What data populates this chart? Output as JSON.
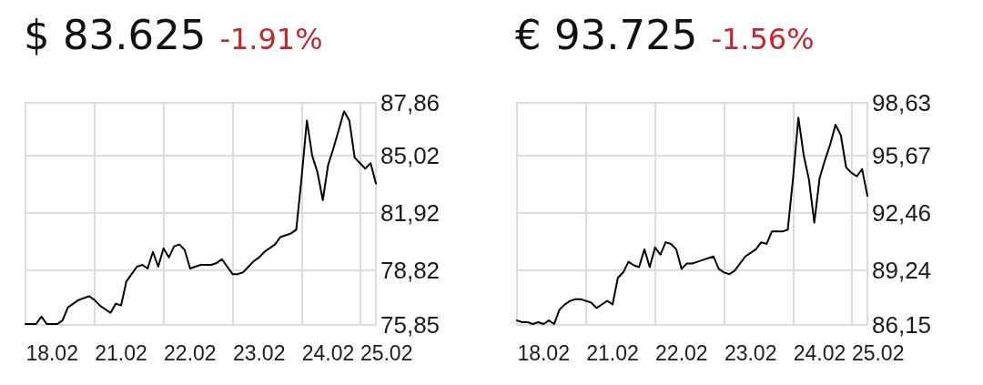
{
  "chart_data": [
    {
      "type": "line",
      "title": "$ 83.625",
      "subtitle": "-1.91%",
      "categories": [
        null,
        null,
        null,
        null,
        null,
        "18.02",
        null,
        null,
        null,
        null,
        null,
        null,
        null,
        null,
        null,
        null,
        null,
        null,
        "21.02",
        null,
        null,
        null,
        null,
        null,
        null,
        null,
        null,
        null,
        null,
        null,
        null,
        "22.02",
        null,
        null,
        null,
        null,
        null,
        null,
        null,
        null,
        null,
        null,
        null,
        null,
        "23.02",
        null,
        null,
        null,
        null,
        null,
        null,
        null,
        null,
        null,
        null,
        null,
        null,
        "24.02",
        null,
        null,
        null,
        null,
        null,
        null,
        null,
        null,
        null,
        null,
        "25.02"
      ],
      "series": [
        {
          "color": "#000000",
          "values": [
            75.9,
            75.9,
            75.9,
            76.3,
            75.9,
            75.9,
            75.9,
            76.1,
            76.8,
            77.0,
            77.2,
            77.3,
            77.4,
            77.2,
            76.9,
            76.7,
            76.5,
            77.0,
            76.9,
            78.2,
            78.6,
            79.0,
            79.1,
            78.9,
            79.8,
            79.0,
            80.0,
            79.5,
            80.1,
            80.2,
            79.9,
            78.9,
            79.0,
            79.1,
            79.1,
            79.1,
            79.2,
            79.4,
            79.0,
            78.6,
            78.6,
            78.7,
            79.0,
            79.3,
            79.5,
            79.8,
            80.0,
            80.2,
            80.6,
            80.7,
            80.8,
            81.0,
            83.8,
            86.9,
            85.0,
            84.1,
            82.6,
            84.5,
            85.4,
            86.4,
            87.4,
            86.9,
            84.9,
            84.6,
            84.3,
            84.6,
            83.5,
            null,
            null
          ]
        }
      ],
      "ylim": [
        75.85,
        87.86
      ],
      "yticks": [
        {
          "value": 75.85,
          "label": "75,85"
        },
        {
          "value": 78.82,
          "label": "78,82"
        },
        {
          "value": 81.92,
          "label": "81,92"
        },
        {
          "value": 85.02,
          "label": "85,02"
        },
        {
          "value": 87.86,
          "label": "87,86"
        }
      ],
      "grid": true,
      "marker": "none",
      "line_style": "solid"
    },
    {
      "type": "line",
      "title": "€ 93.725",
      "subtitle": "-1.56%",
      "categories": [
        null,
        null,
        null,
        null,
        null,
        "18.02",
        null,
        null,
        null,
        null,
        null,
        null,
        null,
        null,
        null,
        null,
        null,
        null,
        "21.02",
        null,
        null,
        null,
        null,
        null,
        null,
        null,
        null,
        null,
        null,
        null,
        null,
        "22.02",
        null,
        null,
        null,
        null,
        null,
        null,
        null,
        null,
        null,
        null,
        null,
        null,
        "23.02",
        null,
        null,
        null,
        null,
        null,
        null,
        null,
        null,
        null,
        null,
        null,
        null,
        "24.02",
        null,
        null,
        null,
        null,
        null,
        null,
        null,
        null,
        null,
        null,
        "25.02"
      ],
      "series": [
        {
          "color": "#000000",
          "values": [
            86.4,
            86.3,
            86.3,
            86.2,
            86.3,
            86.2,
            86.4,
            86.2,
            87.0,
            87.3,
            87.5,
            87.6,
            87.6,
            87.5,
            87.4,
            87.1,
            87.3,
            87.5,
            87.3,
            88.8,
            89.1,
            89.7,
            89.5,
            89.4,
            90.4,
            89.4,
            90.5,
            90.1,
            90.8,
            90.7,
            90.4,
            89.3,
            89.6,
            89.6,
            89.7,
            89.8,
            89.9,
            90.0,
            89.3,
            89.1,
            89.0,
            89.2,
            89.6,
            90.0,
            90.2,
            90.4,
            90.8,
            90.7,
            91.4,
            91.4,
            91.4,
            91.5,
            94.4,
            97.8,
            95.7,
            94.3,
            91.9,
            94.4,
            95.4,
            96.3,
            97.4,
            96.8,
            95.0,
            94.7,
            94.5,
            94.9,
            93.4,
            null,
            null
          ]
        }
      ],
      "ylim": [
        86.15,
        98.63
      ],
      "yticks": [
        {
          "value": 86.15,
          "label": "86,15"
        },
        {
          "value": 89.24,
          "label": "89,24"
        },
        {
          "value": 92.46,
          "label": "92,46"
        },
        {
          "value": 95.67,
          "label": "95,67"
        },
        {
          "value": 98.63,
          "label": "98,63"
        }
      ],
      "grid": true,
      "marker": "none",
      "line_style": "solid"
    }
  ]
}
